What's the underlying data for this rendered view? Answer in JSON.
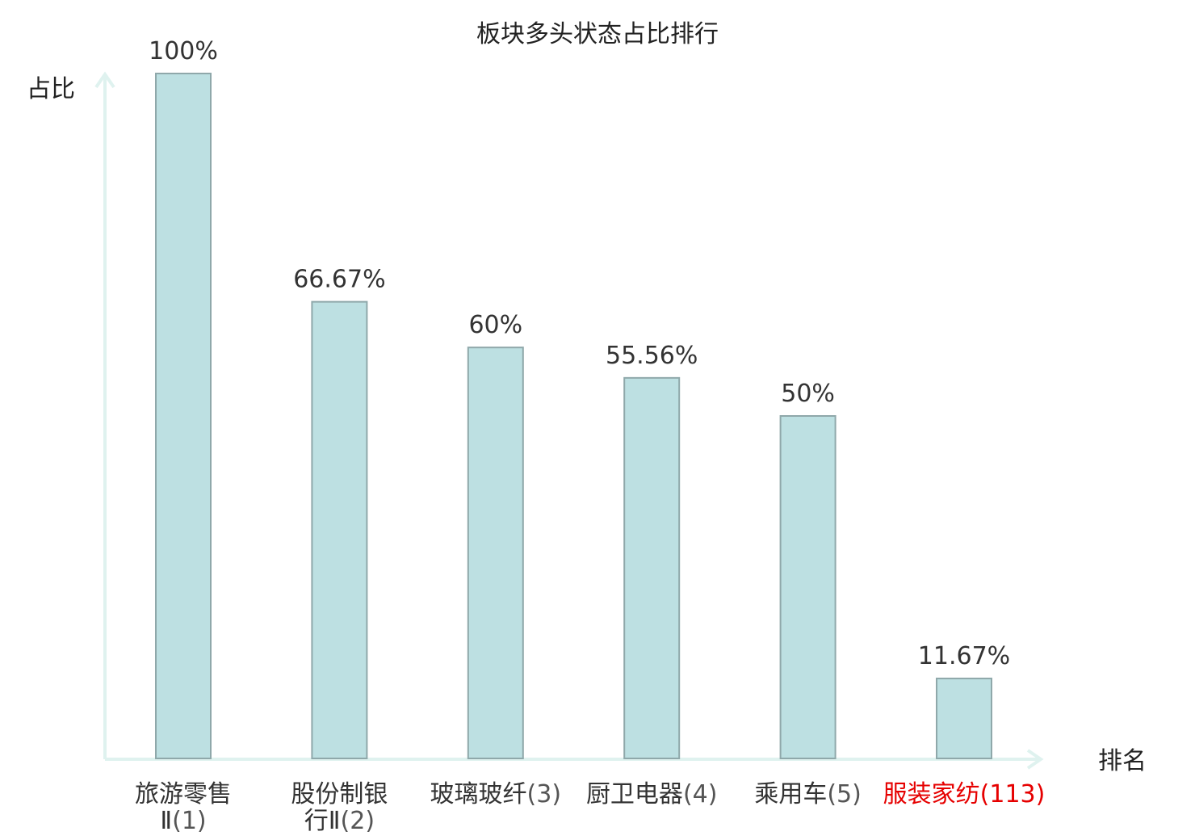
{
  "chart_data": {
    "type": "bar",
    "title": "板块多头状态占比排行",
    "ylabel": "占比",
    "xlabel": "排名",
    "ylim": [
      0,
      100
    ],
    "grid": false,
    "categories": [
      {
        "name": "旅游零售Ⅱ",
        "rank": "(1)"
      },
      {
        "name": "股份制银行Ⅱ",
        "rank": "(2)"
      },
      {
        "name": "玻璃玻纤",
        "rank": "(3)"
      },
      {
        "name": "厨卫电器",
        "rank": "(4)"
      },
      {
        "name": "乘用车",
        "rank": "(5)"
      },
      {
        "name": "服装家纺",
        "rank": "(113)"
      }
    ],
    "values": [
      100,
      66.67,
      60,
      55.56,
      50,
      11.67
    ],
    "value_labels": [
      "100%",
      "66.67%",
      "60%",
      "55.56%",
      "50%",
      "11.67%"
    ],
    "highlight_index": 5
  },
  "colors": {
    "bar_fill": "#bde0e2",
    "bar_stroke": "#8fa8aa",
    "axis": "#dff2ef",
    "highlight": "#e60000"
  }
}
